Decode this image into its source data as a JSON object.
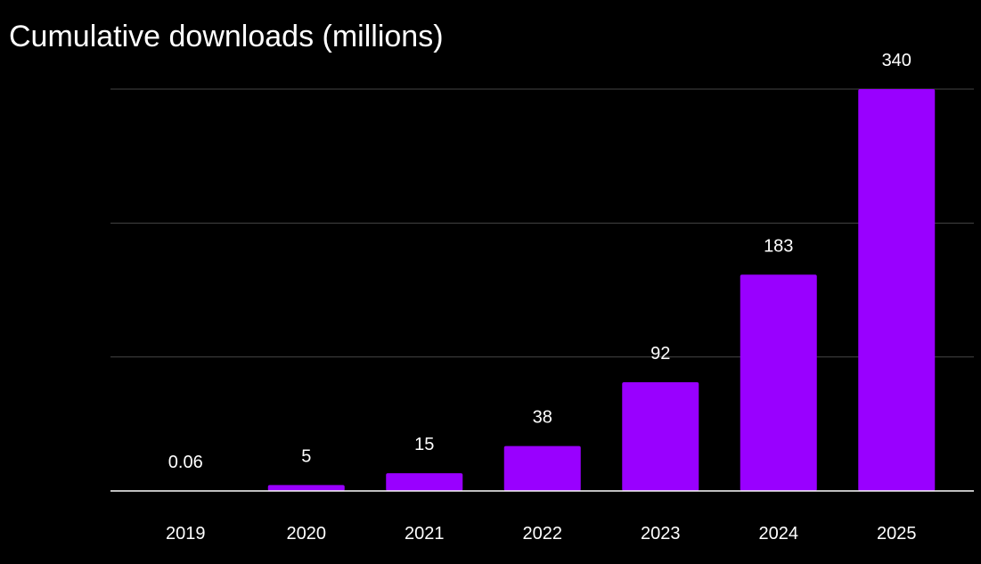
{
  "chart_data": {
    "type": "bar",
    "title": "Cumulative downloads (millions)",
    "categories": [
      "2019",
      "2020",
      "2021",
      "2022",
      "2023",
      "2024",
      "2025"
    ],
    "values": [
      0.06,
      5,
      15,
      38,
      92,
      183,
      340
    ],
    "value_labels": [
      "0.06",
      "5",
      "15",
      "38",
      "92",
      "183",
      "340"
    ],
    "xlabel": "",
    "ylabel": "",
    "ylim": [
      0,
      340
    ],
    "grid": true,
    "legend": "none",
    "bar_color": "#9900ff",
    "gridline_color": "#444444",
    "axis_color": "#ffffff",
    "background": "#000000"
  }
}
